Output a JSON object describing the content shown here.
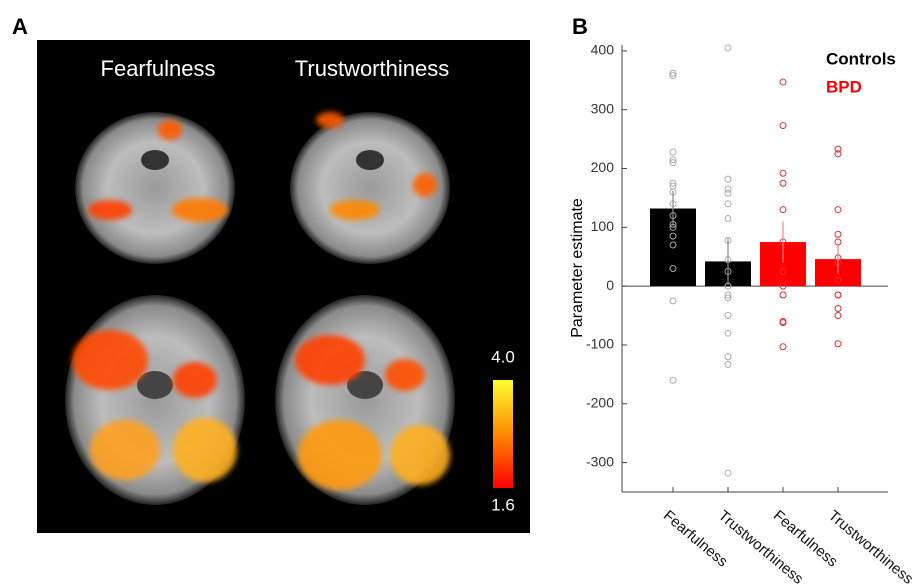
{
  "brain_panel": {
    "label": "A",
    "titles": [
      "Fearfulness",
      "Trustworthiness"
    ],
    "colorbar": {
      "ticks": [
        {
          "value": 4.0,
          "label": "4.0"
        },
        1.6
      ],
      "colors": [
        "#ff0000",
        "#ff8a00",
        "#ffff30"
      ]
    }
  },
  "chart_data": {
    "type": "bar",
    "panel_label": "B",
    "ylabel": "Parameter estimate",
    "categories": [
      "Fearfulness",
      "Trustworthiness",
      "Fearfulness",
      "Trustworthiness"
    ],
    "series": [
      {
        "name": "Controls",
        "color": "#000000",
        "point_color": "#aaaaaa",
        "values": [
          132,
          42,
          null,
          null
        ],
        "errors": [
          30,
          40,
          null,
          null
        ],
        "points": [
          [
            362,
            358,
            228,
            215,
            210,
            175,
            170,
            160,
            140,
            120,
            105,
            100,
            85,
            70,
            30,
            -25,
            -160
          ],
          [
            405,
            182,
            165,
            158,
            140,
            115,
            78,
            45,
            25,
            0,
            -15,
            -20,
            -50,
            -80,
            -120,
            -133,
            -318
          ],
          null,
          null
        ]
      },
      {
        "name": "BPD",
        "color": "#ff0000",
        "point_color": "#e03030",
        "values": [
          null,
          null,
          75,
          46
        ],
        "errors": [
          null,
          null,
          35,
          25
        ],
        "points": [
          null,
          null,
          [
            347,
            273,
            192,
            175,
            130,
            75,
            25,
            0,
            -15,
            -60,
            -62,
            -103
          ],
          [
            233,
            225,
            130,
            88,
            75,
            48,
            40,
            10,
            -15,
            -15,
            -38,
            -50,
            -98
          ]
        ]
      }
    ],
    "ylim": [
      -350,
      410
    ],
    "yticks": [
      -300,
      -200,
      -100,
      0,
      100,
      200,
      300,
      400
    ]
  }
}
